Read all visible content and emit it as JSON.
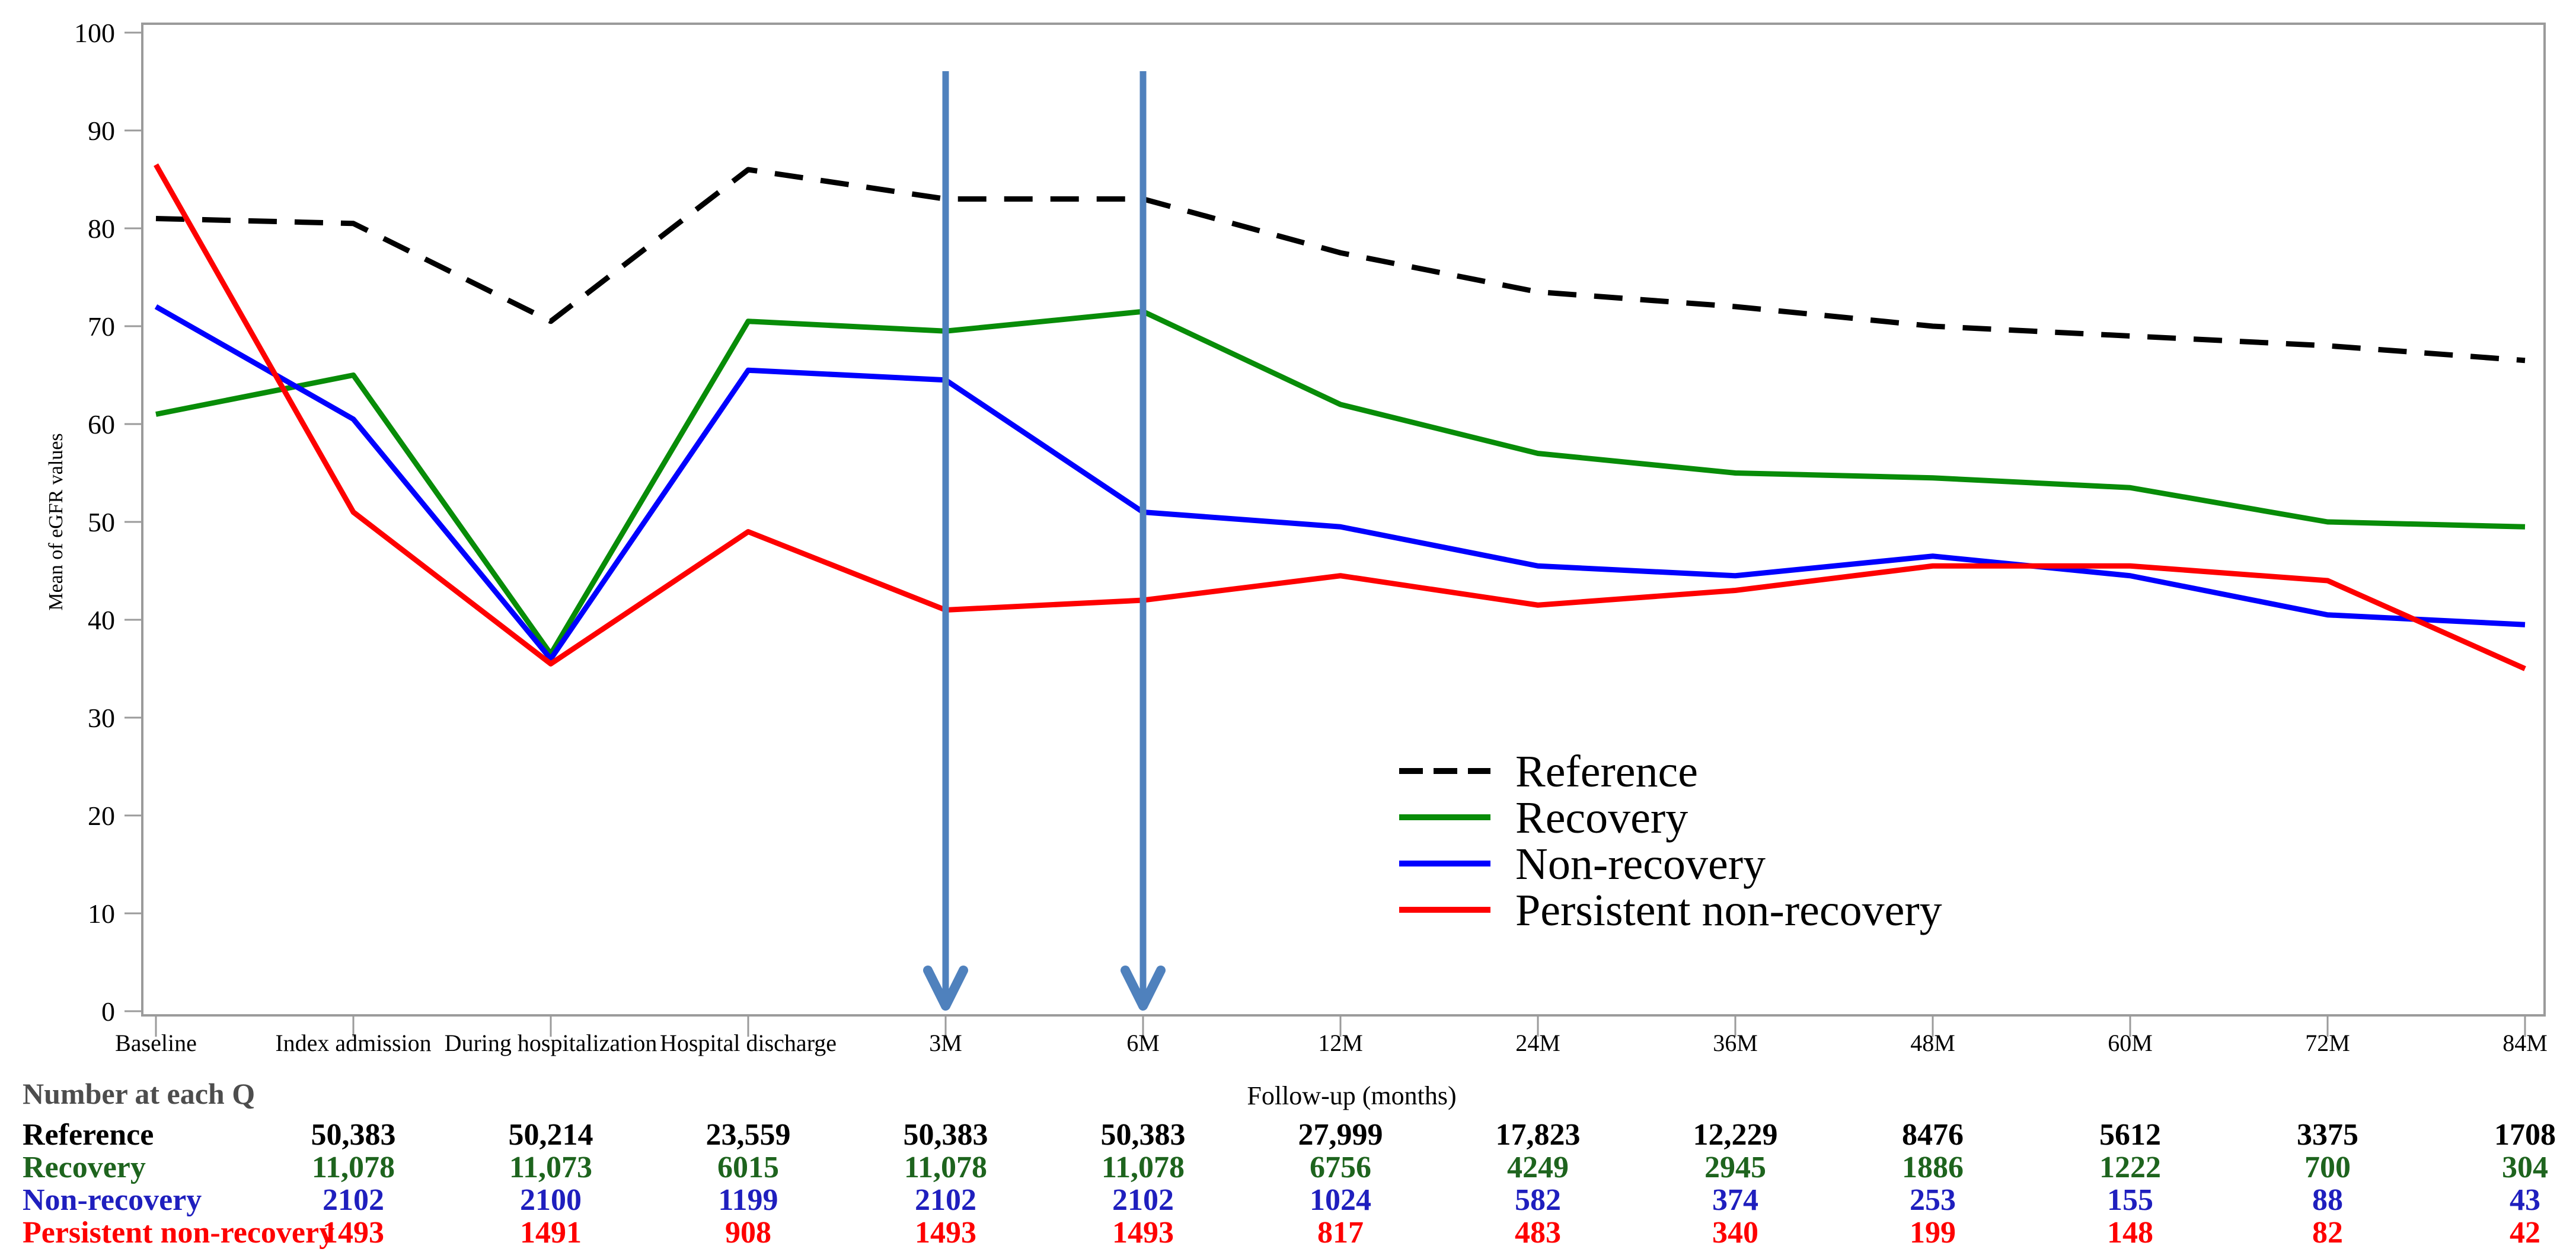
{
  "chart_data": {
    "type": "line",
    "title": "",
    "ylabel": "Mean of eGFR values",
    "xlabel": "Follow-up (months)",
    "ylim": [
      0,
      100
    ],
    "ytick_step": 10,
    "grid": false,
    "frame_color": "#9b9b9b",
    "legend_position": "inside-right",
    "categories": [
      "Baseline",
      "Index admission",
      "During hospitalization",
      "Hospital discharge",
      "3M",
      "6M",
      "12M",
      "24M",
      "36M",
      "48M",
      "60M",
      "72M",
      "84M"
    ],
    "series": [
      {
        "name": "Reference",
        "color": "#000000",
        "dashed": true,
        "values": [
          81,
          80.5,
          70.5,
          86,
          83,
          83,
          77.5,
          73.5,
          72,
          70,
          69,
          68,
          66.5
        ]
      },
      {
        "name": "Recovery",
        "color": "#088c08",
        "dashed": false,
        "values": [
          61,
          65,
          36.5,
          70.5,
          69.5,
          71.5,
          62,
          57,
          55,
          54.5,
          53.5,
          50,
          49.5
        ]
      },
      {
        "name": "Non-recovery",
        "color": "#0000fe",
        "dashed": false,
        "values": [
          72,
          60.5,
          36,
          65.5,
          64.5,
          51,
          49.5,
          45.5,
          44.5,
          46.5,
          44.5,
          40.5,
          39.5
        ]
      },
      {
        "name": "Persistent non-recovery",
        "color": "#fe0000",
        "dashed": false,
        "values": [
          86.5,
          51,
          35.5,
          49,
          41,
          42,
          44.5,
          41.5,
          43,
          45.5,
          45.5,
          44,
          35
        ]
      }
    ],
    "annotations": {
      "arrows_at": [
        "3M",
        "6M"
      ],
      "arrow_color": "#4f81bd"
    }
  },
  "table": {
    "title": "Number at each Q",
    "title_color": "#4d4d4d",
    "aligned_from_category": "Index admission",
    "rows": [
      {
        "label": "Reference",
        "color": "#000000",
        "values": [
          "50,383",
          "50,214",
          "23,559",
          "50,383",
          "50,383",
          "27,999",
          "17,823",
          "12,229",
          "8476",
          "5612",
          "3375",
          "1708"
        ]
      },
      {
        "label": "Recovery",
        "color": "#1e641e",
        "values": [
          "11,078",
          "11,073",
          "6015",
          "11,078",
          "11,078",
          "6756",
          "4249",
          "2945",
          "1886",
          "1222",
          "700",
          "304"
        ]
      },
      {
        "label": "Non-recovery",
        "color": "#1f1fbe",
        "values": [
          "2102",
          "2100",
          "1199",
          "2102",
          "2102",
          "1024",
          "582",
          "374",
          "253",
          "155",
          "88",
          "43"
        ]
      },
      {
        "label": "Persistent non-recovery",
        "color": "#fe0000",
        "values": [
          "1493",
          "1491",
          "908",
          "1493",
          "1493",
          "817",
          "483",
          "340",
          "199",
          "148",
          "82",
          "42"
        ]
      }
    ]
  }
}
